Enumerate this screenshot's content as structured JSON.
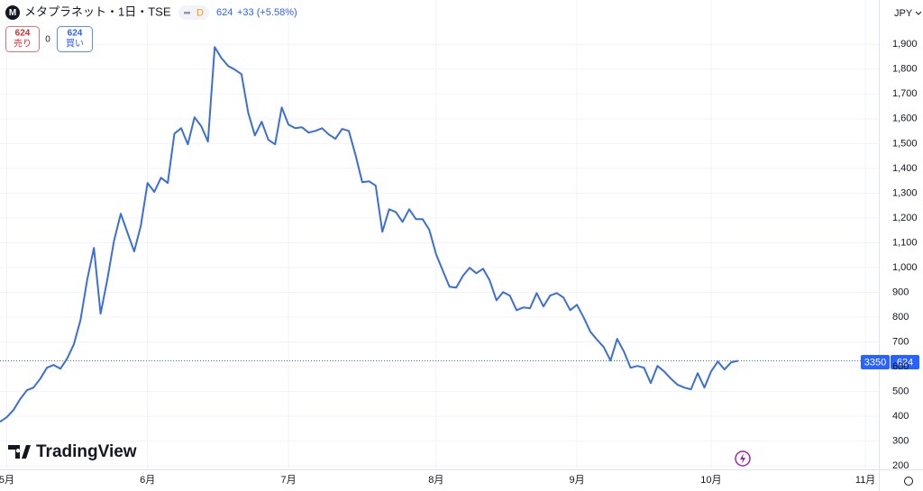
{
  "toolbar": {
    "logo": "M",
    "symbol": "メタプラネット・1日・TSE",
    "status": "D",
    "price": "624",
    "change": "+33 (+5.58%)",
    "sell_price": "624",
    "sell_label": "売り",
    "spread": "0",
    "buy_price": "624",
    "buy_label": "買い",
    "currency": "JPY",
    "brand": "TradingView",
    "countdown": "3350",
    "last_price": "624"
  },
  "chart_data": {
    "type": "line",
    "grid": true,
    "series": [
      {
        "color": "#3b6fd6",
        "values": [
          378,
          396,
          425,
          469,
          505,
          516,
          552,
          596,
          607,
          592,
          632,
          690,
          788,
          952,
          1079,
          814,
          952,
          1108,
          1217,
          1141,
          1065,
          1170,
          1341,
          1305,
          1362,
          1341,
          1540,
          1562,
          1497,
          1606,
          1570,
          1508,
          1889,
          1845,
          1813,
          1798,
          1780,
          1624,
          1533,
          1588,
          1515,
          1497,
          1646,
          1577,
          1562,
          1566,
          1544,
          1551,
          1562,
          1537,
          1519,
          1559,
          1551,
          1453,
          1344,
          1348,
          1330,
          1144,
          1235,
          1224,
          1184,
          1235,
          1195,
          1195,
          1152,
          1054,
          988,
          923,
          919,
          966,
          999,
          977,
          995,
          948,
          868,
          901,
          887,
          828,
          839,
          836,
          897,
          843,
          887,
          897,
          879,
          828,
          850,
          799,
          741,
          709,
          679,
          625,
          712,
          661,
          596,
          603,
          596,
          534,
          603,
          581,
          552,
          527,
          516,
          509,
          574,
          516,
          581,
          621,
          589,
          618,
          624
        ]
      }
    ],
    "xlim": [
      0,
      131
    ],
    "xticks": [
      {
        "value": 1,
        "label": "5月"
      },
      {
        "value": 22,
        "label": "6月"
      },
      {
        "value": 43,
        "label": "7月"
      },
      {
        "value": 65,
        "label": "8月"
      },
      {
        "value": 86,
        "label": "9月"
      },
      {
        "value": 106,
        "label": "10月"
      },
      {
        "value": 129,
        "label": "11月"
      }
    ],
    "ylim": [
      186,
      2079
    ],
    "yticks": [
      200,
      300,
      400,
      500,
      600,
      700,
      800,
      900,
      {
        "value": 1000,
        "label": "1,000"
      },
      {
        "value": 1100,
        "label": "1,100"
      },
      {
        "value": 1200,
        "label": "1,200"
      },
      {
        "value": 1300,
        "label": "1,300"
      },
      {
        "value": 1400,
        "label": "1,400"
      },
      {
        "value": 1500,
        "label": "1,500"
      },
      {
        "value": 1600,
        "label": "1,600"
      },
      {
        "value": 1700,
        "label": "1,700"
      },
      {
        "value": 1800,
        "label": "1,800"
      },
      {
        "value": 1900,
        "label": "1,900"
      }
    ]
  }
}
